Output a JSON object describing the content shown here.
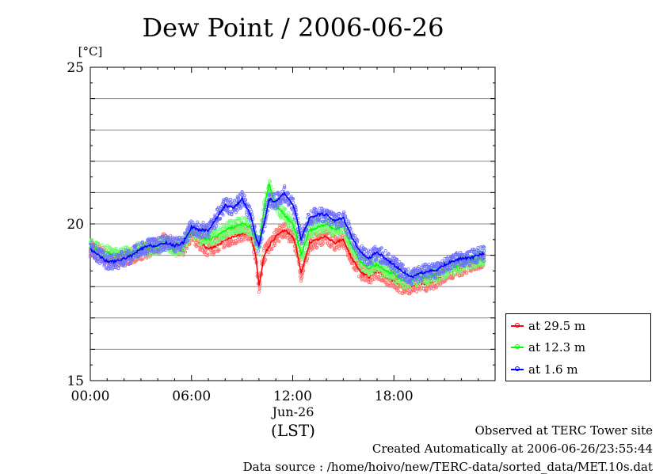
{
  "chart_data": {
    "type": "line",
    "title": "Dew Point / 2006-06-26",
    "ylabel": "[°C]",
    "xlabel": "(LST)",
    "date_label": "Jun-26",
    "ylim": [
      15,
      25
    ],
    "xlim": [
      0,
      24
    ],
    "yticks_major": [
      15,
      20,
      25
    ],
    "yticks_minor": [
      16,
      17,
      18,
      19,
      21,
      22,
      23,
      24
    ],
    "xticks": [
      {
        "hour": 0,
        "label": "00:00"
      },
      {
        "hour": 6,
        "label": "06:00"
      },
      {
        "hour": 12,
        "label": "12:00"
      },
      {
        "hour": 18,
        "label": "18:00"
      }
    ],
    "grid": true,
    "legend_position": "bottom-right outside",
    "series": [
      {
        "name": "at 29.5 m",
        "color": "#ff0000",
        "x": [
          0,
          0.5,
          1,
          1.5,
          2,
          2.5,
          3,
          3.5,
          4,
          4.5,
          5,
          5.5,
          6,
          6.5,
          7,
          7.5,
          8,
          8.5,
          9,
          9.5,
          9.8,
          10,
          10.3,
          10.6,
          11,
          11.5,
          12,
          12.2,
          12.5,
          13,
          13.5,
          14,
          14.5,
          15,
          15.5,
          16,
          16.5,
          17,
          17.5,
          18,
          18.5,
          19,
          19.5,
          20,
          20.5,
          21,
          21.5,
          22,
          22.5,
          23,
          23.5,
          24
        ],
        "y": [
          19.2,
          19.1,
          19.0,
          18.9,
          18.9,
          19.0,
          19.1,
          19.2,
          19.3,
          19.5,
          19.3,
          19.2,
          19.7,
          19.4,
          19.2,
          19.3,
          19.5,
          19.6,
          19.7,
          19.7,
          19.0,
          18.0,
          19.0,
          19.3,
          19.6,
          19.8,
          19.6,
          19.3,
          18.4,
          19.4,
          19.5,
          19.6,
          19.4,
          19.5,
          18.9,
          18.5,
          18.3,
          18.5,
          18.3,
          18.2,
          18.0,
          18.0,
          18.1,
          18.1,
          18.2,
          18.4,
          18.5,
          18.6,
          18.7,
          18.8,
          18.9,
          18.9
        ]
      },
      {
        "name": "at 12.3 m",
        "color": "#00ff00",
        "x": [
          0,
          0.5,
          1,
          1.5,
          2,
          2.5,
          3,
          3.5,
          4,
          4.5,
          5,
          5.5,
          6,
          6.5,
          7,
          7.5,
          8,
          8.5,
          9,
          9.5,
          9.8,
          10,
          10.3,
          10.6,
          11,
          11.5,
          12,
          12.2,
          12.5,
          13,
          13.5,
          14,
          14.5,
          15,
          15.5,
          16,
          16.5,
          17,
          17.5,
          18,
          18.5,
          19,
          19.5,
          20,
          20.5,
          21,
          21.5,
          22,
          22.5,
          23,
          23.5,
          24
        ],
        "y": [
          19.3,
          19.2,
          19.1,
          19.0,
          19.0,
          19.1,
          19.2,
          19.2,
          19.3,
          19.4,
          19.2,
          19.3,
          19.8,
          19.6,
          19.5,
          19.6,
          19.8,
          19.9,
          20.0,
          19.9,
          19.5,
          19.2,
          20.5,
          21.3,
          20.6,
          20.3,
          20.0,
          19.7,
          19.0,
          19.8,
          19.9,
          20.0,
          19.8,
          19.9,
          19.3,
          18.8,
          18.6,
          18.7,
          18.5,
          18.4,
          18.2,
          18.2,
          18.3,
          18.3,
          18.4,
          18.5,
          18.6,
          18.7,
          18.8,
          18.9,
          18.9,
          19.0
        ]
      },
      {
        "name": "at 1.6 m",
        "color": "#0000ff",
        "x": [
          0,
          0.5,
          1,
          1.5,
          2,
          2.5,
          3,
          3.5,
          4,
          4.5,
          5,
          5.5,
          6,
          6.5,
          7,
          7.5,
          8,
          8.5,
          9,
          9.5,
          9.8,
          10,
          10.3,
          10.6,
          11,
          11.5,
          12,
          12.2,
          12.5,
          13,
          13.5,
          14,
          14.5,
          15,
          15.5,
          16,
          16.5,
          17,
          17.5,
          18,
          18.5,
          19,
          19.5,
          20,
          20.5,
          21,
          21.5,
          22,
          22.5,
          23,
          23.5,
          24
        ],
        "y": [
          19.2,
          19.0,
          18.8,
          18.8,
          18.9,
          19.0,
          19.2,
          19.3,
          19.3,
          19.4,
          19.3,
          19.4,
          19.9,
          19.8,
          19.8,
          20.2,
          20.6,
          20.5,
          20.8,
          20.3,
          19.6,
          19.3,
          20.0,
          20.8,
          20.7,
          21.0,
          20.6,
          20.3,
          19.5,
          20.2,
          20.3,
          20.3,
          20.1,
          20.2,
          19.6,
          19.1,
          18.9,
          19.1,
          18.9,
          18.7,
          18.5,
          18.3,
          18.4,
          18.5,
          18.5,
          18.7,
          18.8,
          18.9,
          18.9,
          19.0,
          19.1,
          19.2
        ]
      }
    ]
  },
  "footer": {
    "observed": "Observed at TERC Tower site",
    "created": "Created Automatically at 2006-06-26/23:55:44",
    "source": "Data source : /home/hoivo/new/TERC-data/sorted_data/MET.10s.dat"
  }
}
